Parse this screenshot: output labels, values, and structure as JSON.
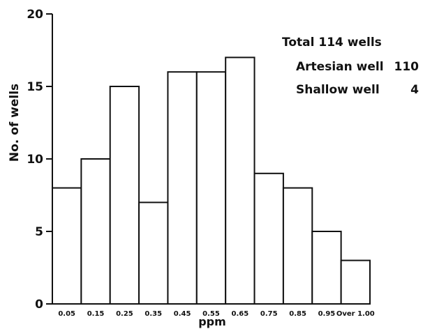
{
  "chart_data": {
    "type": "bar",
    "categories": [
      "0.05",
      "0.15",
      "0.25",
      "0.35",
      "0.45",
      "0.55",
      "0.65",
      "0.75",
      "0.85",
      "0.95",
      "Over 1.00"
    ],
    "values": [
      8,
      10,
      15,
      7,
      16,
      16,
      17,
      9,
      8,
      5,
      3
    ],
    "title": "",
    "xlabel": "ppm",
    "ylabel": "No. of wells",
    "ylim": [
      0,
      20
    ],
    "yticks": [
      "0",
      "5",
      "10",
      "15",
      "20"
    ],
    "grid": false,
    "legend_position": "top-right"
  },
  "legend": {
    "total_label": "Total 114 wells",
    "rows": [
      {
        "label": "Artesian well",
        "value": "110"
      },
      {
        "label": "Shallow well",
        "value": "4"
      }
    ]
  },
  "colors": {
    "ink": "#111111",
    "bar_fill": "#ffffff"
  }
}
